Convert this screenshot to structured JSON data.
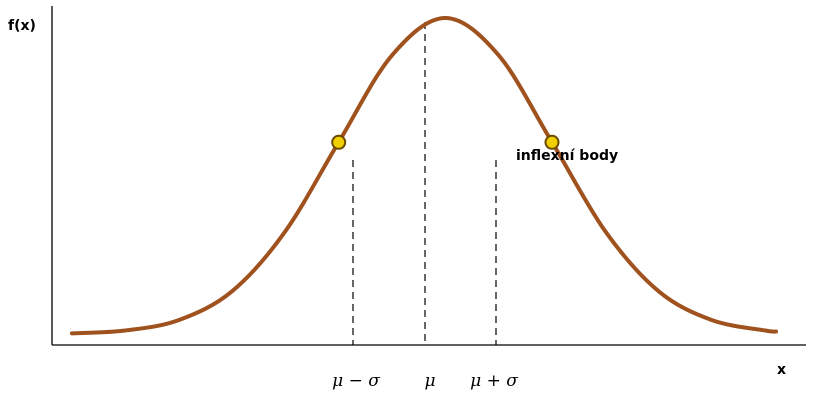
{
  "chart_data": {
    "type": "line",
    "title": "",
    "xlabel": "x",
    "ylabel": "f(x)",
    "grid": false,
    "legend": "none",
    "x_tick_labels": [
      "μ − σ",
      "μ",
      "μ + σ"
    ],
    "x_ticks": [
      -1,
      0,
      1
    ],
    "xlim": [
      -3.5,
      3.1
    ],
    "ylim": [
      0,
      1.05
    ],
    "series": [
      {
        "x": [
          -3.5,
          -3.0,
          -2.5,
          -2.0,
          -1.5,
          -1.0,
          -0.5,
          0.0,
          0.5,
          1.0,
          1.5,
          2.0,
          2.5,
          3.0,
          3.1
        ],
        "values": [
          0.002,
          0.011,
          0.044,
          0.135,
          0.325,
          0.607,
          0.882,
          1.0,
          0.882,
          0.607,
          0.325,
          0.135,
          0.044,
          0.011,
          0.008
        ],
        "color": "#A0521E"
      }
    ],
    "annotations": [
      {
        "text": "inflexní body",
        "points_x": [
          -1,
          1
        ]
      }
    ],
    "marker_color": "#F0D000",
    "marker_edge": "#6B4A00"
  }
}
